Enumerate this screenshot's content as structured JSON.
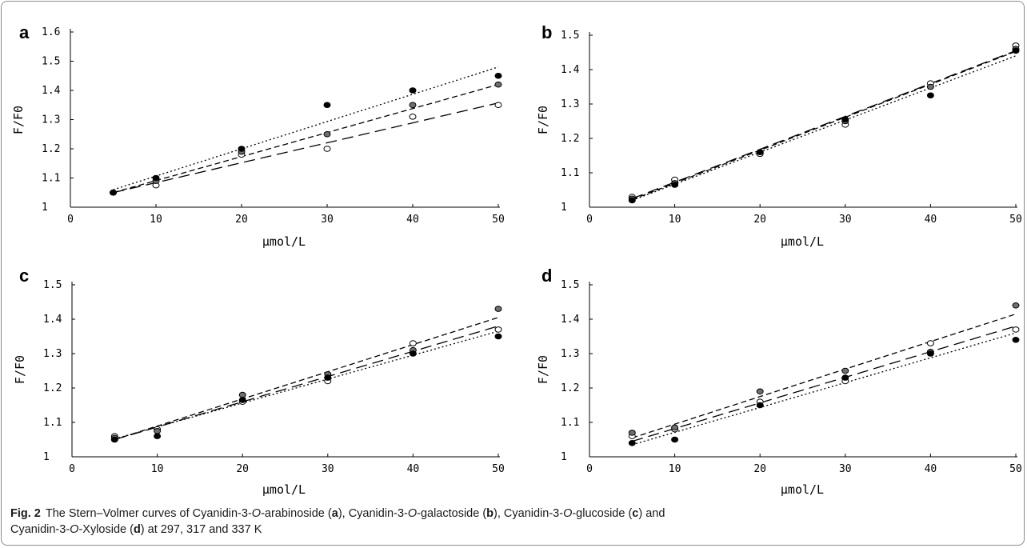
{
  "caption": {
    "fig_label": "Fig. 2",
    "parts": [
      {
        "t": "The Stern–Volmer curves of Cyanidin-3-"
      },
      {
        "t": "O",
        "i": true
      },
      {
        "t": "-arabinoside ("
      },
      {
        "t": "a",
        "b": true
      },
      {
        "t": "), Cyanidin-3-"
      },
      {
        "t": "O",
        "i": true
      },
      {
        "t": "-galactoside ("
      },
      {
        "t": "b",
        "b": true
      },
      {
        "t": "), Cyanidin-3-"
      },
      {
        "t": "O",
        "i": true
      },
      {
        "t": "-glucoside ("
      },
      {
        "t": "c",
        "b": true
      },
      {
        "t": ") and"
      },
      {
        "br": true
      },
      {
        "t": "Cyanidin-3-"
      },
      {
        "t": "O",
        "i": true
      },
      {
        "t": "-Xyloside ("
      },
      {
        "t": "d",
        "b": true
      },
      {
        "t": ") at 297, 317 and 337 K"
      }
    ]
  },
  "colors": {
    "line": "#000000",
    "open_fill": "#ffffff",
    "gray_fill": "#6f6f6f",
    "black_fill": "#000000"
  },
  "chart_data": [
    {
      "panel": "a",
      "type": "scatter",
      "xlabel": "μmol/L",
      "ylabel": "F/F0",
      "xlim": [
        0,
        50
      ],
      "ylim": [
        1,
        1.6
      ],
      "xticks": [
        0,
        10,
        20,
        30,
        40,
        50
      ],
      "yticks": [
        1,
        1.1,
        1.2,
        1.3,
        1.4,
        1.5,
        1.6
      ],
      "ytick_labels": [
        "1",
        "1.1",
        "1.2",
        "1.3",
        "1.4",
        "1.5",
        "1.6"
      ],
      "grid": false,
      "legend": "none",
      "series": [
        {
          "marker": "open",
          "line": "long-dash",
          "x": [
            5,
            10,
            20,
            30,
            40,
            50
          ],
          "y": [
            1.05,
            1.075,
            1.18,
            1.2,
            1.31,
            1.35
          ],
          "fit": [
            1.05,
            1.357
          ]
        },
        {
          "marker": "gray",
          "line": "dash",
          "x": [
            5,
            10,
            20,
            30,
            40,
            50
          ],
          "y": [
            1.05,
            1.09,
            1.19,
            1.25,
            1.35,
            1.42
          ],
          "fit": [
            1.05,
            1.42
          ]
        },
        {
          "marker": "black",
          "line": "dotted",
          "x": [
            5,
            10,
            20,
            30,
            40,
            50
          ],
          "y": [
            1.05,
            1.1,
            1.2,
            1.35,
            1.4,
            1.45
          ],
          "fit": [
            1.06,
            1.48
          ]
        }
      ]
    },
    {
      "panel": "b",
      "type": "scatter",
      "xlabel": "μmol/L",
      "ylabel": "F/F0",
      "xlim": [
        0,
        50
      ],
      "ylim": [
        1,
        1.5
      ],
      "xticks": [
        0,
        10,
        20,
        30,
        40,
        50
      ],
      "yticks": [
        1,
        1.1,
        1.2,
        1.3,
        1.4,
        1.5
      ],
      "ytick_labels": [
        "1",
        "1.1",
        "1.2",
        "1.3",
        "1.4",
        "1.5"
      ],
      "grid": false,
      "legend": "none",
      "series": [
        {
          "marker": "open",
          "line": "long-dash",
          "x": [
            5,
            10,
            20,
            30,
            40,
            50
          ],
          "y": [
            1.03,
            1.08,
            1.155,
            1.24,
            1.36,
            1.47
          ],
          "fit": [
            1.025,
            1.455
          ]
        },
        {
          "marker": "gray",
          "line": "dash",
          "x": [
            5,
            10,
            20,
            30,
            40,
            50
          ],
          "y": [
            1.025,
            1.07,
            1.16,
            1.25,
            1.35,
            1.46
          ],
          "fit": [
            1.022,
            1.453
          ]
        },
        {
          "marker": "black",
          "line": "dotted",
          "x": [
            5,
            10,
            20,
            30,
            40,
            50
          ],
          "y": [
            1.02,
            1.065,
            1.16,
            1.255,
            1.325,
            1.455
          ],
          "fit": [
            1.02,
            1.44
          ]
        }
      ]
    },
    {
      "panel": "c",
      "type": "scatter",
      "xlabel": "μmol/L",
      "ylabel": "F/F0",
      "xlim": [
        0,
        50
      ],
      "ylim": [
        1,
        1.5
      ],
      "xticks": [
        0,
        10,
        20,
        30,
        40,
        50
      ],
      "yticks": [
        1,
        1.1,
        1.2,
        1.3,
        1.4,
        1.5
      ],
      "ytick_labels": [
        "1",
        "1.1",
        "1.2",
        "1.3",
        "1.4",
        "1.5"
      ],
      "grid": false,
      "legend": "none",
      "series": [
        {
          "marker": "open",
          "line": "long-dash",
          "x": [
            5,
            10,
            20,
            30,
            40,
            50
          ],
          "y": [
            1.06,
            1.08,
            1.16,
            1.22,
            1.33,
            1.37
          ],
          "fit": [
            1.05,
            1.38
          ]
        },
        {
          "marker": "gray",
          "line": "dash",
          "x": [
            5,
            10,
            20,
            30,
            40,
            50
          ],
          "y": [
            1.055,
            1.075,
            1.18,
            1.24,
            1.31,
            1.43
          ],
          "fit": [
            1.05,
            1.405
          ]
        },
        {
          "marker": "black",
          "line": "dotted",
          "x": [
            5,
            10,
            20,
            30,
            40,
            50
          ],
          "y": [
            1.05,
            1.06,
            1.165,
            1.23,
            1.3,
            1.35
          ],
          "fit": [
            1.052,
            1.365
          ]
        }
      ]
    },
    {
      "panel": "d",
      "type": "scatter",
      "xlabel": "μmol/L",
      "ylabel": "F/F0",
      "xlim": [
        0,
        50
      ],
      "ylim": [
        1,
        1.5
      ],
      "xticks": [
        0,
        10,
        20,
        30,
        40,
        50
      ],
      "yticks": [
        1,
        1.1,
        1.2,
        1.3,
        1.4,
        1.5
      ],
      "ytick_labels": [
        "1",
        "1.1",
        "1.2",
        "1.3",
        "1.4",
        "1.5"
      ],
      "grid": false,
      "legend": "none",
      "series": [
        {
          "marker": "open",
          "line": "long-dash",
          "x": [
            5,
            10,
            20,
            30,
            40,
            50
          ],
          "y": [
            1.06,
            1.08,
            1.16,
            1.22,
            1.33,
            1.37
          ],
          "fit": [
            1.045,
            1.38
          ]
        },
        {
          "marker": "gray",
          "line": "dash",
          "x": [
            5,
            10,
            20,
            30,
            40,
            50
          ],
          "y": [
            1.07,
            1.085,
            1.19,
            1.25,
            1.305,
            1.44
          ],
          "fit": [
            1.055,
            1.415
          ]
        },
        {
          "marker": "black",
          "line": "dotted",
          "x": [
            5,
            10,
            20,
            30,
            40,
            50
          ],
          "y": [
            1.04,
            1.05,
            1.15,
            1.23,
            1.3,
            1.34
          ],
          "fit": [
            1.035,
            1.36
          ]
        }
      ]
    }
  ]
}
